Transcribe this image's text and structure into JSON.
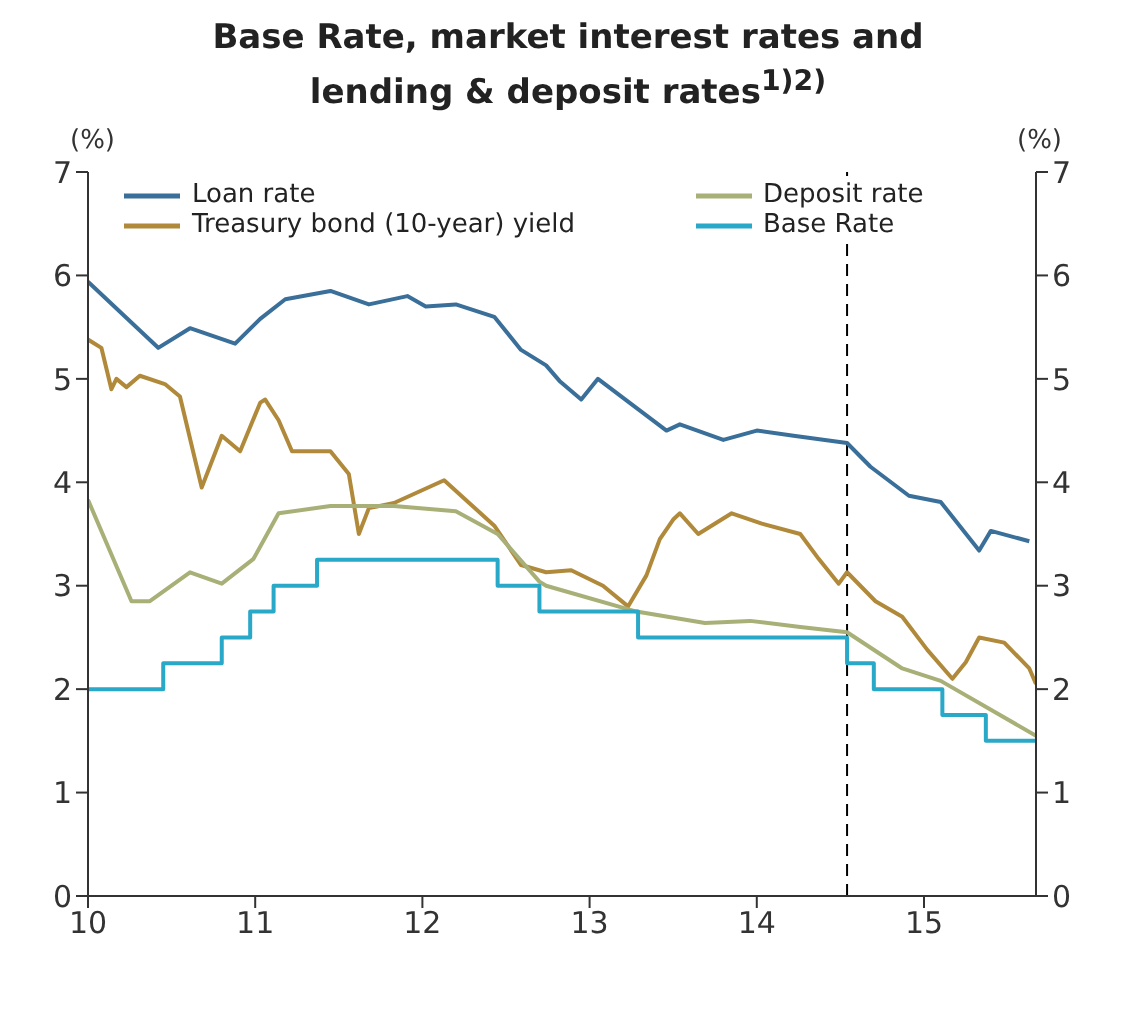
{
  "chart_data": {
    "type": "line",
    "title": "Base Rate, market interest rates and\nlending & deposit rates$^{1)2)}$",
    "ylabel": "(%)",
    "y2label": "(%)",
    "xlim": [
      10,
      15.67
    ],
    "xticks": [
      10,
      11,
      12,
      13,
      14,
      15
    ],
    "ylim": [
      0,
      7
    ],
    "yticks": [
      0,
      1,
      2,
      3,
      4,
      5,
      6,
      7
    ],
    "y2lim": [
      0,
      7
    ],
    "y2ticks": [
      0,
      1,
      2,
      3,
      4,
      5,
      6,
      7
    ],
    "grid": false,
    "legend": "top",
    "marker": "none",
    "line_style": "solid",
    "ref_lines": [
      {
        "axis": "x",
        "value": 14.54,
        "color": "#000000",
        "line_style": "dashed"
      }
    ],
    "series": [
      {
        "name": "Loan rate",
        "color": "#3a6f9a",
        "x": [
          10.0,
          10.42,
          10.61,
          10.88,
          11.03,
          11.18,
          11.45,
          11.68,
          11.91,
          12.02,
          12.2,
          12.43,
          12.59,
          12.74,
          12.82,
          12.95,
          13.05,
          13.46,
          13.54,
          13.8,
          14.0,
          14.22,
          14.54,
          14.68,
          14.91,
          15.1,
          15.33,
          15.4,
          15.63
        ],
        "values": [
          5.94,
          5.3,
          5.49,
          5.34,
          5.58,
          5.77,
          5.85,
          5.72,
          5.8,
          5.7,
          5.72,
          5.6,
          5.28,
          5.13,
          4.98,
          4.8,
          5.0,
          4.5,
          4.56,
          4.41,
          4.5,
          4.45,
          4.38,
          4.15,
          3.87,
          3.81,
          3.34,
          3.53,
          3.43
        ]
      },
      {
        "name": "Treasury bond (10-year) yield",
        "color": "#b08a3a",
        "x": [
          10.0,
          10.08,
          10.14,
          10.17,
          10.23,
          10.31,
          10.46,
          10.55,
          10.68,
          10.8,
          10.91,
          11.03,
          11.06,
          11.14,
          11.22,
          11.45,
          11.56,
          11.62,
          11.68,
          11.83,
          12.13,
          12.28,
          12.43,
          12.59,
          12.74,
          12.89,
          13.08,
          13.23,
          13.34,
          13.42,
          13.5,
          13.54,
          13.65,
          13.85,
          14.03,
          14.26,
          14.37,
          14.49,
          14.54,
          14.71,
          14.87,
          15.02,
          15.17,
          15.25,
          15.33,
          15.48,
          15.63,
          15.67
        ],
        "values": [
          5.38,
          5.3,
          4.9,
          5.0,
          4.92,
          5.03,
          4.95,
          4.83,
          3.95,
          4.45,
          4.3,
          4.77,
          4.8,
          4.6,
          4.3,
          4.3,
          4.08,
          3.5,
          3.75,
          3.8,
          4.02,
          3.8,
          3.58,
          3.2,
          3.13,
          3.15,
          3.0,
          2.8,
          3.1,
          3.45,
          3.64,
          3.7,
          3.5,
          3.7,
          3.6,
          3.5,
          3.26,
          3.02,
          3.13,
          2.85,
          2.7,
          2.38,
          2.1,
          2.26,
          2.5,
          2.45,
          2.2,
          2.05
        ]
      },
      {
        "name": "Deposit rate",
        "color": "#a8b078",
        "x": [
          10.0,
          10.26,
          10.37,
          10.61,
          10.8,
          10.99,
          11.14,
          11.45,
          11.83,
          12.2,
          12.45,
          12.7,
          12.74,
          13.28,
          13.69,
          13.96,
          14.26,
          14.54,
          14.87,
          15.1,
          15.4,
          15.67
        ],
        "values": [
          3.83,
          2.85,
          2.85,
          3.13,
          3.02,
          3.26,
          3.7,
          3.77,
          3.77,
          3.72,
          3.5,
          3.04,
          3.0,
          2.75,
          2.64,
          2.66,
          2.6,
          2.55,
          2.2,
          2.08,
          1.8,
          1.55
        ]
      },
      {
        "name": "Base Rate",
        "type": "step",
        "color": "#2aa8c8",
        "x": [
          10.0,
          10.45,
          10.8,
          10.97,
          11.11,
          11.37,
          12.45,
          12.7,
          13.29,
          14.54,
          14.7,
          15.11,
          15.37,
          15.67
        ],
        "values": [
          2.0,
          2.25,
          2.5,
          2.75,
          3.0,
          3.25,
          3.0,
          2.75,
          2.5,
          2.25,
          2.0,
          1.75,
          1.5,
          1.5
        ]
      }
    ]
  }
}
